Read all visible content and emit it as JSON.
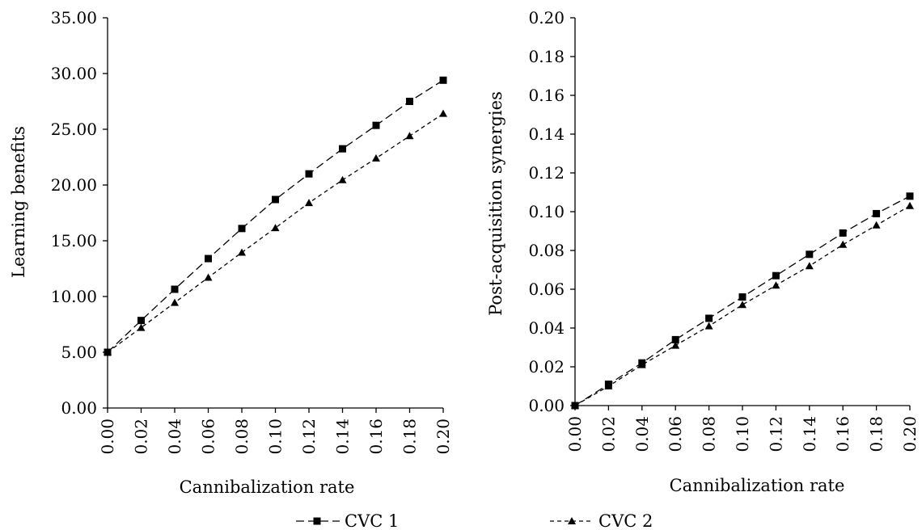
{
  "chart_data": [
    {
      "type": "line",
      "xlabel": "Cannibalization rate",
      "ylabel": "Learning benefits",
      "x": [
        0.0,
        0.02,
        0.04,
        0.06,
        0.08,
        0.1,
        0.12,
        0.14,
        0.16,
        0.18,
        0.2
      ],
      "x_tick_labels": [
        "0.00",
        "0.02",
        "0.04",
        "0.06",
        "0.08",
        "0.10",
        "0.12",
        "0.14",
        "0.16",
        "0.18",
        "0.20"
      ],
      "ylim": [
        0,
        35
      ],
      "y_ticks": [
        0,
        5,
        10,
        15,
        20,
        25,
        30,
        35
      ],
      "y_tick_labels": [
        "0.00",
        "5.00",
        "10.00",
        "15.00",
        "20.00",
        "25.00",
        "30.00",
        "35.00"
      ],
      "grid": false,
      "series": [
        {
          "name": "CVC 1",
          "marker": "square",
          "dash": "long",
          "values": [
            5.0,
            7.85,
            10.65,
            13.4,
            16.1,
            18.7,
            21.0,
            23.25,
            25.35,
            27.5,
            29.4
          ]
        },
        {
          "name": "CVC 2",
          "marker": "triangle",
          "dash": "short",
          "values": [
            5.0,
            7.2,
            9.45,
            11.7,
            13.95,
            16.15,
            18.4,
            20.45,
            22.4,
            24.4,
            26.4
          ]
        }
      ]
    },
    {
      "type": "line",
      "xlabel": "Cannibalization rate",
      "ylabel": "Post-acquisition synergies",
      "x": [
        0.0,
        0.02,
        0.04,
        0.06,
        0.08,
        0.1,
        0.12,
        0.14,
        0.16,
        0.18,
        0.2
      ],
      "x_tick_labels": [
        "0.00",
        "0.02",
        "0.04",
        "0.06",
        "0.08",
        "0.10",
        "0.12",
        "0.14",
        "0.16",
        "0.18",
        "0.20"
      ],
      "ylim": [
        0,
        0.2
      ],
      "y_ticks": [
        0,
        0.02,
        0.04,
        0.06,
        0.08,
        0.1,
        0.12,
        0.14,
        0.16,
        0.18,
        0.2
      ],
      "y_tick_labels": [
        "0.00",
        "0.02",
        "0.04",
        "0.06",
        "0.08",
        "0.10",
        "0.12",
        "0.14",
        "0.16",
        "0.18",
        "0.20"
      ],
      "grid": false,
      "series": [
        {
          "name": "CVC 1",
          "marker": "square",
          "dash": "long",
          "values": [
            0.0,
            0.011,
            0.022,
            0.034,
            0.045,
            0.056,
            0.067,
            0.078,
            0.089,
            0.099,
            0.108
          ]
        },
        {
          "name": "CVC 2",
          "marker": "triangle",
          "dash": "short",
          "values": [
            0.0,
            0.01,
            0.021,
            0.031,
            0.041,
            0.052,
            0.062,
            0.072,
            0.083,
            0.093,
            0.103
          ]
        }
      ]
    }
  ],
  "legend": {
    "placement": "bottom-center",
    "entries": [
      {
        "label": "CVC 1",
        "marker": "square",
        "dash": "long"
      },
      {
        "label": "CVC 2",
        "marker": "triangle",
        "dash": "short"
      }
    ]
  }
}
